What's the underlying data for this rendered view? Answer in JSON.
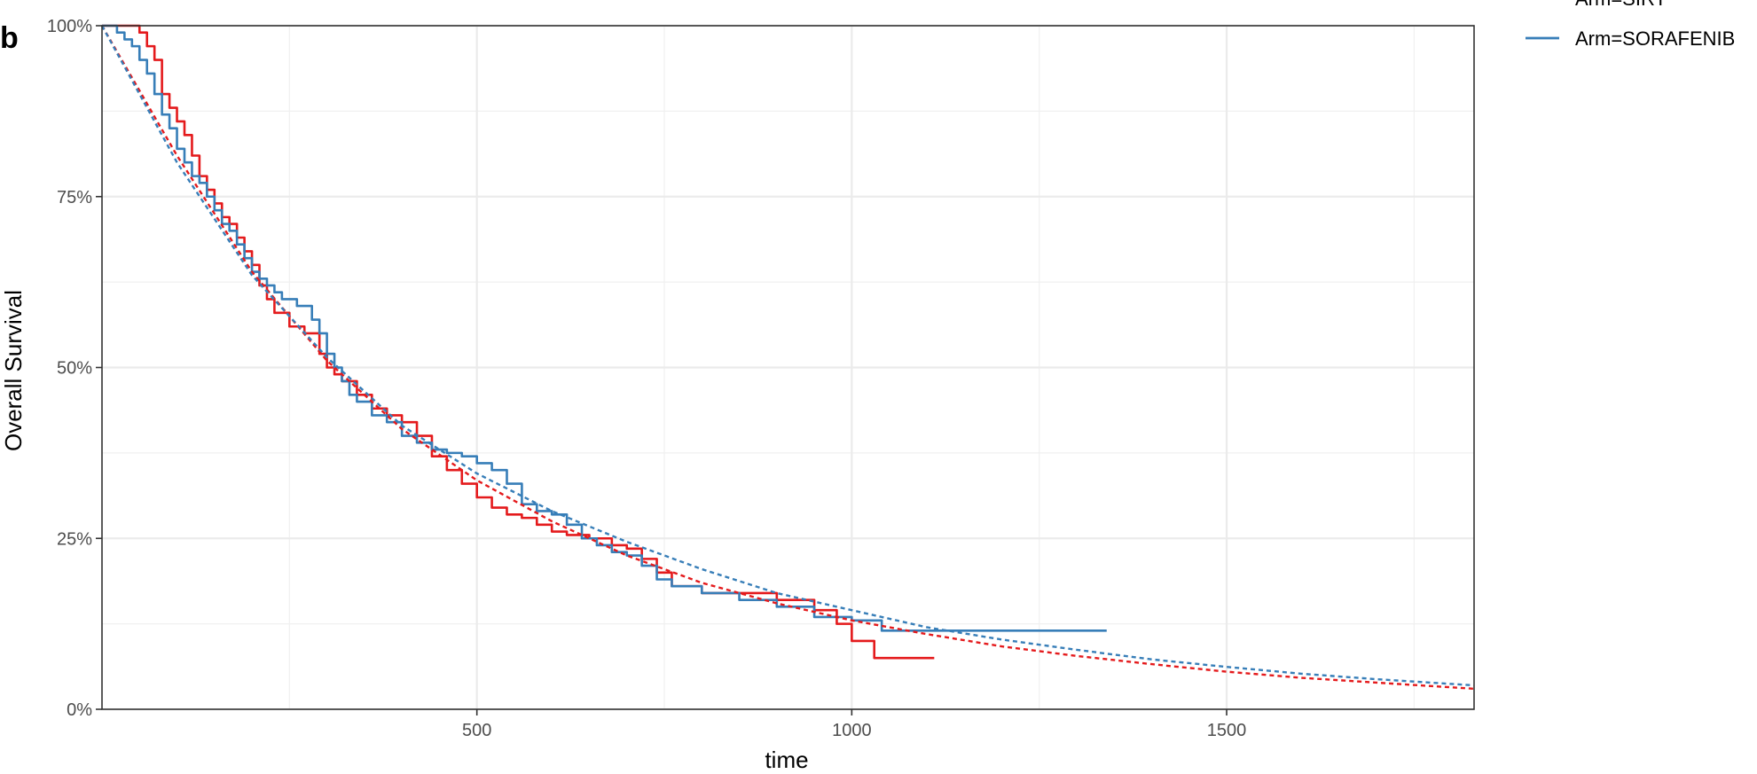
{
  "panel_tag": "b",
  "chart_data": {
    "type": "line",
    "xlabel": "time",
    "ylabel": "Overall Survival",
    "xlim": [
      0,
      1830
    ],
    "ylim": [
      0,
      100
    ],
    "x_ticks": [
      500,
      1000,
      1500
    ],
    "y_ticks": [
      0,
      25,
      50,
      75,
      100
    ],
    "y_tick_labels": [
      "0%",
      "25%",
      "50%",
      "75%",
      "100%"
    ],
    "grid": true,
    "legend_position": "top-right (outside plot)",
    "legend": [
      {
        "label": "Arm=SIRT",
        "color": "#e41a1c"
      },
      {
        "label": "Arm=SORAFENIB",
        "color": "#377eb8"
      }
    ],
    "series": [
      {
        "name": "Arm=SIRT",
        "color": "#e41a1c",
        "kind": "kaplan-meier step",
        "x": [
          0,
          50,
          60,
          70,
          80,
          90,
          100,
          110,
          120,
          130,
          140,
          150,
          160,
          170,
          180,
          190,
          200,
          210,
          220,
          230,
          250,
          270,
          290,
          300,
          310,
          320,
          340,
          360,
          380,
          400,
          420,
          440,
          460,
          480,
          500,
          520,
          540,
          560,
          580,
          600,
          620,
          650,
          680,
          700,
          720,
          740,
          760,
          800,
          850,
          900,
          950,
          980,
          1000,
          1030,
          1110
        ],
        "y": [
          100,
          99,
          97,
          95,
          90,
          88,
          86,
          84,
          81,
          78,
          76,
          74,
          72,
          71,
          69,
          67,
          65,
          62,
          60,
          58,
          56,
          55,
          52,
          50,
          49,
          48,
          46,
          44,
          43,
          42,
          40,
          37,
          35,
          33,
          31,
          29.5,
          28.5,
          28,
          27,
          26,
          25.5,
          25,
          24,
          23.5,
          22,
          20,
          18,
          17,
          17,
          16,
          14.5,
          12.5,
          10,
          7.5,
          7.5
        ]
      },
      {
        "name": "Arm=SORAFENIB",
        "color": "#377eb8",
        "kind": "kaplan-meier step",
        "x": [
          0,
          20,
          30,
          40,
          50,
          60,
          70,
          80,
          90,
          100,
          110,
          120,
          130,
          140,
          150,
          160,
          170,
          180,
          190,
          200,
          210,
          220,
          230,
          240,
          260,
          280,
          290,
          300,
          310,
          320,
          330,
          340,
          360,
          380,
          400,
          420,
          440,
          460,
          480,
          500,
          520,
          540,
          560,
          580,
          600,
          620,
          640,
          660,
          680,
          700,
          720,
          740,
          760,
          800,
          850,
          900,
          950,
          1000,
          1040,
          1340
        ],
        "y": [
          100,
          99,
          98,
          97,
          95,
          93,
          90,
          87,
          85,
          82,
          80,
          78,
          77,
          75,
          73,
          71,
          70,
          68,
          66,
          64,
          63,
          62,
          61,
          60,
          59,
          57,
          55,
          52,
          50,
          48,
          46,
          45,
          43,
          42,
          40,
          39,
          38,
          37.5,
          37,
          36,
          35,
          33,
          30,
          29,
          28.5,
          27,
          25,
          24,
          23,
          22.5,
          21,
          19,
          18,
          17,
          16,
          15,
          13.5,
          13,
          11.5,
          11.5
        ]
      },
      {
        "name": "",
        "color": "#e41a1c",
        "kind": "parametric fit (dashed)",
        "x": [
          0,
          100,
          200,
          300,
          400,
          500,
          600,
          700,
          800,
          900,
          1000,
          1100,
          1200,
          1300,
          1400,
          1500,
          1600,
          1700,
          1830
        ],
        "y": [
          100,
          81,
          64,
          51,
          41,
          33.5,
          27.5,
          22.5,
          18.5,
          15.5,
          13,
          11,
          9.2,
          7.8,
          6.6,
          5.5,
          4.6,
          3.9,
          3.0
        ]
      },
      {
        "name": "",
        "color": "#377eb8",
        "kind": "parametric fit (dashed)",
        "x": [
          0,
          100,
          200,
          300,
          400,
          500,
          600,
          700,
          800,
          900,
          1000,
          1100,
          1200,
          1300,
          1400,
          1500,
          1600,
          1700,
          1830
        ],
        "y": [
          100,
          80,
          63.5,
          51.5,
          41.5,
          34.5,
          29,
          24.5,
          20.5,
          17,
          14.5,
          12,
          10.2,
          8.7,
          7.3,
          6.2,
          5.2,
          4.4,
          3.5
        ]
      }
    ]
  }
}
